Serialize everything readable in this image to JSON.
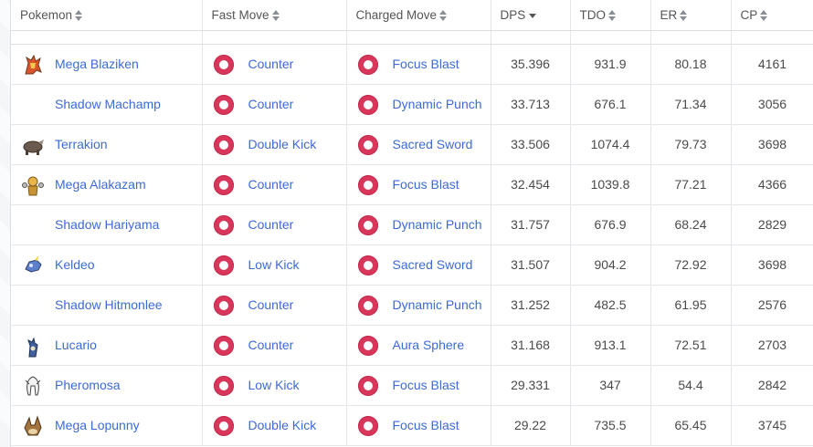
{
  "columns": [
    {
      "label": "Pokemon",
      "sort": "both"
    },
    {
      "label": "Fast Move",
      "sort": "both"
    },
    {
      "label": "Charged Move",
      "sort": "both"
    },
    {
      "label": "DPS",
      "sort": "desc"
    },
    {
      "label": "TDO",
      "sort": "both"
    },
    {
      "label": "ER",
      "sort": "both"
    },
    {
      "label": "CP",
      "sort": "both"
    }
  ],
  "rows": [
    {
      "pokemon": "Mega Blaziken",
      "sprite": "blaziken-sprite",
      "fast": "Counter",
      "charged": "Focus Blast",
      "dps": "35.396",
      "tdo": "931.9",
      "er": "80.18",
      "cp": "4161"
    },
    {
      "pokemon": "Shadow Machamp",
      "sprite": "",
      "fast": "Counter",
      "charged": "Dynamic Punch",
      "dps": "33.713",
      "tdo": "676.1",
      "er": "71.34",
      "cp": "3056"
    },
    {
      "pokemon": "Terrakion",
      "sprite": "terrakion-sprite",
      "fast": "Double Kick",
      "charged": "Sacred Sword",
      "dps": "33.506",
      "tdo": "1074.4",
      "er": "79.73",
      "cp": "3698"
    },
    {
      "pokemon": "Mega Alakazam",
      "sprite": "alakazam-sprite",
      "fast": "Counter",
      "charged": "Focus Blast",
      "dps": "32.454",
      "tdo": "1039.8",
      "er": "77.21",
      "cp": "4366"
    },
    {
      "pokemon": "Shadow Hariyama",
      "sprite": "",
      "fast": "Counter",
      "charged": "Dynamic Punch",
      "dps": "31.757",
      "tdo": "676.9",
      "er": "68.24",
      "cp": "2829"
    },
    {
      "pokemon": "Keldeo",
      "sprite": "keldeo-sprite",
      "fast": "Low Kick",
      "charged": "Sacred Sword",
      "dps": "31.507",
      "tdo": "904.2",
      "er": "72.92",
      "cp": "3698"
    },
    {
      "pokemon": "Shadow Hitmonlee",
      "sprite": "",
      "fast": "Counter",
      "charged": "Dynamic Punch",
      "dps": "31.252",
      "tdo": "482.5",
      "er": "61.95",
      "cp": "2576"
    },
    {
      "pokemon": "Lucario",
      "sprite": "lucario-sprite",
      "fast": "Counter",
      "charged": "Aura Sphere",
      "dps": "31.168",
      "tdo": "913.1",
      "er": "72.51",
      "cp": "2703"
    },
    {
      "pokemon": "Pheromosa",
      "sprite": "pheromosa-sprite",
      "fast": "Low Kick",
      "charged": "Focus Blast",
      "dps": "29.331",
      "tdo": "347",
      "er": "54.4",
      "cp": "2842"
    },
    {
      "pokemon": "Mega Lopunny",
      "sprite": "lopunny-sprite",
      "fast": "Double Kick",
      "charged": "Focus Blast",
      "dps": "29.22",
      "tdo": "735.5",
      "er": "65.45",
      "cp": "3745"
    }
  ],
  "colors": {
    "link": "#3d6bd6",
    "fighting_type": "#d8365a"
  },
  "move_type_icon": "fighting-type-icon"
}
